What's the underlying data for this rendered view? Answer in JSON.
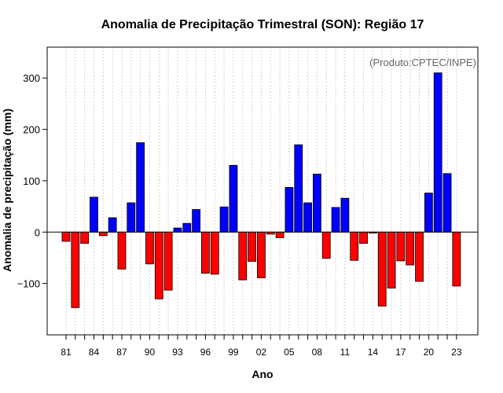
{
  "chart_data": {
    "type": "bar",
    "title": "Anomalia de Precipitação Trimestral (SON): Região 17",
    "xlabel": "Ano",
    "ylabel": "Anomalia de precipitação (mm)",
    "credit": "(Produto:CPTEC/INPE)",
    "ylim": [
      -200,
      360
    ],
    "yticks": [
      -100,
      0,
      100,
      200,
      300
    ],
    "ytick_labels": [
      "−100",
      "0",
      "100",
      "200",
      "300"
    ],
    "years": [
      1981,
      1982,
      1983,
      1984,
      1985,
      1986,
      1987,
      1988,
      1989,
      1990,
      1991,
      1992,
      1993,
      1994,
      1995,
      1996,
      1997,
      1998,
      1999,
      2000,
      2001,
      2002,
      2003,
      2004,
      2005,
      2006,
      2007,
      2008,
      2009,
      2010,
      2011,
      2012,
      2013,
      2014,
      2015,
      2016,
      2017,
      2018,
      2019,
      2020,
      2021,
      2022,
      2023
    ],
    "xtick_years": [
      1981,
      1984,
      1987,
      1990,
      1993,
      1996,
      1999,
      2002,
      2005,
      2008,
      2011,
      2014,
      2017,
      2020,
      2023
    ],
    "xtick_labels": [
      "81",
      "84",
      "87",
      "90",
      "93",
      "96",
      "99",
      "02",
      "05",
      "08",
      "11",
      "14",
      "17",
      "20",
      "23"
    ],
    "values": [
      -18,
      -147,
      -22,
      68,
      -7,
      28,
      -72,
      57,
      174,
      -62,
      -130,
      -113,
      8,
      17,
      44,
      -80,
      -82,
      49,
      130,
      -93,
      -57,
      -89,
      -4,
      -11,
      87,
      170,
      57,
      113,
      -51,
      48,
      66,
      -55,
      -22,
      -2,
      -144,
      -109,
      -56,
      -64,
      -96,
      76,
      310,
      114,
      -105
    ],
    "colors": {
      "positive": "#0000ff",
      "negative": "#ff0000",
      "outline": "#000000",
      "grid": "#d3d3d3",
      "credit": "#666666"
    }
  }
}
